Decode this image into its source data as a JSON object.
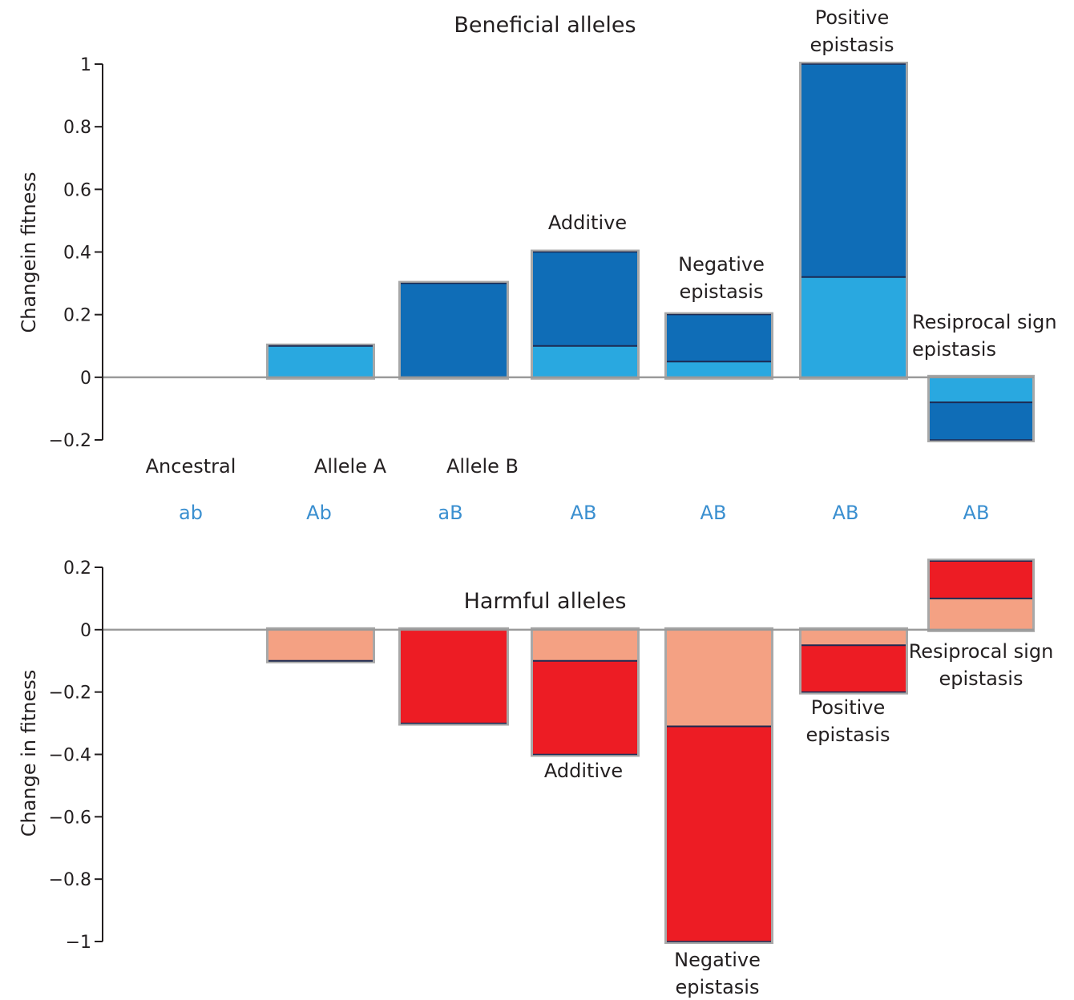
{
  "colors": {
    "beneficial_light": "#29a8e0",
    "beneficial_dark": "#0f6db7",
    "harmful_light": "#f4a183",
    "harmful_dark": "#ed1c24",
    "genotype_text": "#3a8fd0",
    "bar_shadow": "#a8a8a8",
    "axis": "#231f20"
  },
  "categories": [
    "Ancestral",
    "Allele A",
    "Allele B",
    "",
    "",
    "",
    ""
  ],
  "genotypes": [
    "ab",
    "Ab",
    "aB",
    "AB",
    "AB",
    "AB",
    "AB"
  ],
  "chart_data": [
    {
      "type": "bar",
      "stacked": true,
      "title": "Beneficial alleles",
      "ylabel": "Changein fitness",
      "ylim": [
        -0.2,
        1
      ],
      "yticks": [
        {
          "value": 1,
          "label": "1"
        },
        {
          "value": 0.8,
          "label": "0.8"
        },
        {
          "value": 0.6,
          "label": "0.6"
        },
        {
          "value": 0.4,
          "label": "0.4"
        },
        {
          "value": 0.2,
          "label": "0.2"
        },
        {
          "value": 0,
          "label": "0"
        },
        {
          "value": -0.2,
          "label": "−0.2"
        }
      ],
      "bars": [
        {
          "genotype": "ab",
          "light": 0,
          "dark": 0,
          "annotation": ""
        },
        {
          "genotype": "Ab",
          "light": 0.1,
          "dark": 0,
          "annotation": ""
        },
        {
          "genotype": "aB",
          "light": 0,
          "dark": 0.3,
          "annotation": ""
        },
        {
          "genotype": "AB",
          "light": 0.1,
          "dark": 0.3,
          "annotation": "Additive"
        },
        {
          "genotype": "AB",
          "light": 0.05,
          "dark": 0.15,
          "annotation": "Negative\nepistasis"
        },
        {
          "genotype": "AB",
          "light": 0.32,
          "dark": 0.68,
          "annotation": "Positive\nepistasis"
        },
        {
          "genotype": "AB",
          "light": -0.08,
          "dark": -0.12,
          "annotation": "Resiprocal sign\nepistasis"
        }
      ]
    },
    {
      "type": "bar",
      "stacked": true,
      "title": "Harmful alleles",
      "ylabel": "Change in fitness",
      "ylim": [
        -1,
        0.2
      ],
      "yticks": [
        {
          "value": 0.2,
          "label": "0.2"
        },
        {
          "value": 0,
          "label": "0"
        },
        {
          "value": -0.2,
          "label": "−0.2"
        },
        {
          "value": -0.4,
          "label": "−0.4"
        },
        {
          "value": -0.6,
          "label": "−0.6"
        },
        {
          "value": -0.8,
          "label": "−0.8"
        },
        {
          "value": -1,
          "label": "−1"
        }
      ],
      "bars": [
        {
          "genotype": "ab",
          "light": 0,
          "dark": 0,
          "annotation": ""
        },
        {
          "genotype": "Ab",
          "light": -0.1,
          "dark": 0,
          "annotation": ""
        },
        {
          "genotype": "aB",
          "light": 0,
          "dark": -0.3,
          "annotation": ""
        },
        {
          "genotype": "AB",
          "light": -0.1,
          "dark": -0.3,
          "annotation": "Additive"
        },
        {
          "genotype": "AB",
          "light": -0.31,
          "dark": -0.69,
          "annotation": "Negative\nepistasis"
        },
        {
          "genotype": "AB",
          "light": -0.05,
          "dark": -0.15,
          "annotation": "Positive\nepistasis"
        },
        {
          "genotype": "AB",
          "light": 0.1,
          "dark": 0.12,
          "annotation": "Resiprocal sign\nepistasis"
        }
      ]
    }
  ]
}
